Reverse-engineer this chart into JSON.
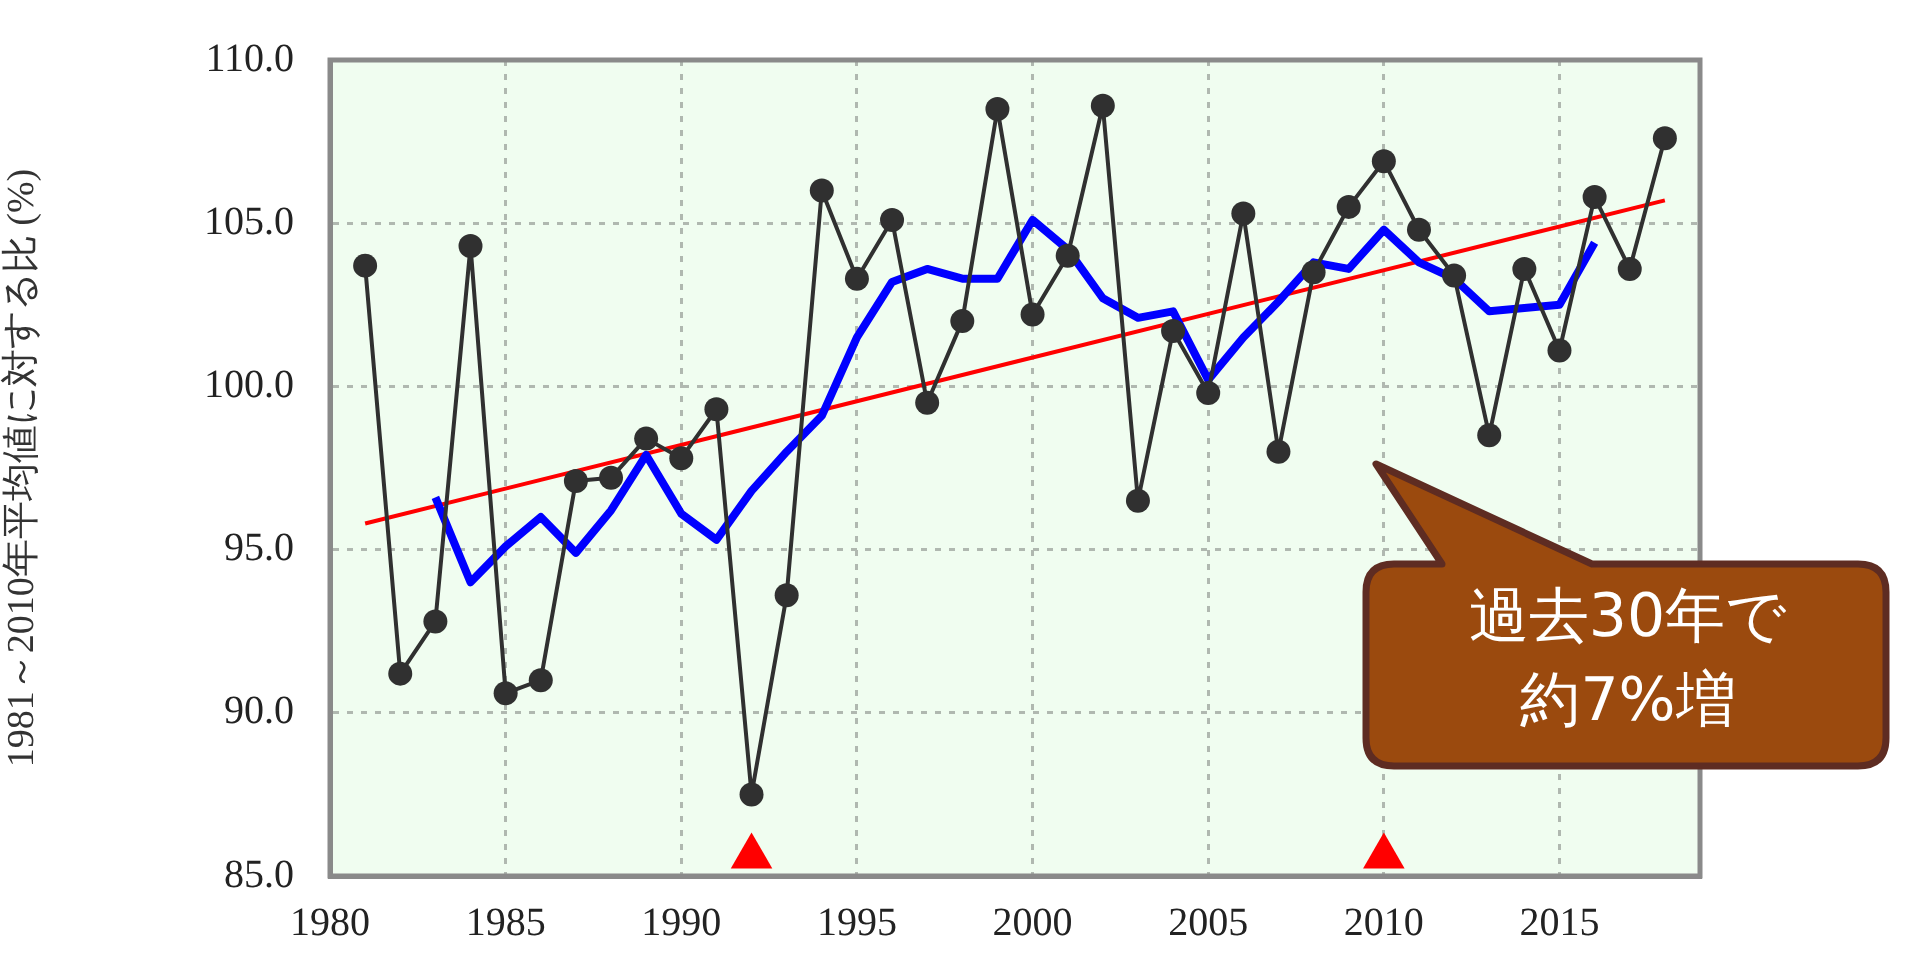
{
  "chart_data": {
    "type": "line",
    "ylabel": "1981～2010年平均値に対する比 (%)",
    "xlim": [
      1980,
      2019
    ],
    "xticks": [
      1980,
      1985,
      1990,
      1995,
      2000,
      2005,
      2010,
      2015
    ],
    "ylim": [
      85,
      110
    ],
    "yticks": [
      {
        "value": 85,
        "label": "85.0"
      },
      {
        "value": 90,
        "label": "90.0"
      },
      {
        "value": 95,
        "label": "95.0"
      },
      {
        "value": 100,
        "label": "100.0"
      },
      {
        "value": 105,
        "label": "105.0"
      },
      {
        "value": 110,
        "label": "110.0"
      }
    ],
    "grid": true,
    "legend": false,
    "series": [
      {
        "type": "line",
        "color": "#303030",
        "marker": "circle",
        "x": [
          1981,
          1982,
          1983,
          1984,
          1985,
          1986,
          1987,
          1988,
          1989,
          1990,
          1991,
          1992,
          1993,
          1994,
          1995,
          1996,
          1997,
          1998,
          1999,
          2000,
          2001,
          2002,
          2003,
          2004,
          2005,
          2006,
          2007,
          2008,
          2009,
          2010,
          2011,
          2012,
          2013,
          2014,
          2015,
          2016,
          2017,
          2018
        ],
        "values": [
          103.7,
          91.2,
          92.8,
          104.3,
          90.6,
          91.0,
          97.1,
          97.2,
          98.4,
          97.8,
          99.3,
          87.5,
          93.6,
          106.0,
          103.3,
          105.1,
          99.5,
          102.0,
          108.5,
          102.2,
          104.0,
          108.6,
          96.5,
          101.7,
          99.8,
          105.3,
          98.0,
          103.5,
          105.5,
          106.9,
          104.8,
          103.4,
          98.5,
          103.6,
          101.1,
          105.8,
          103.6,
          107.6
        ]
      },
      {
        "type": "line",
        "color": "#0000ff",
        "marker": "none",
        "x": [
          1983,
          1984,
          1985,
          1986,
          1987,
          1988,
          1989,
          1990,
          1991,
          1992,
          1993,
          1994,
          1995,
          1996,
          1997,
          1998,
          1999,
          2000,
          2001,
          2002,
          2003,
          2004,
          2005,
          2006,
          2007,
          2008,
          2009,
          2010,
          2011,
          2012,
          2013,
          2014,
          2015,
          2016
        ],
        "values": [
          96.6,
          94.0,
          95.1,
          96.0,
          94.9,
          96.2,
          97.9,
          96.1,
          95.3,
          96.8,
          98.0,
          99.1,
          101.5,
          103.2,
          103.6,
          103.3,
          103.3,
          105.1,
          104.2,
          102.7,
          102.1,
          102.3,
          100.2,
          101.5,
          102.6,
          103.8,
          103.6,
          104.8,
          103.8,
          103.3,
          102.3,
          102.4,
          102.5,
          104.4
        ]
      },
      {
        "type": "line",
        "color": "#ff0000",
        "marker": "none",
        "x": [
          1981,
          2018
        ],
        "values": [
          95.8,
          105.7
        ]
      },
      {
        "type": "scatter",
        "color": "#ff0000",
        "marker": "triangle",
        "x": [
          1992,
          2010
        ],
        "values": [
          85.6,
          85.6
        ]
      }
    ],
    "annotations": [
      "過去30年で約7%増"
    ]
  }
}
